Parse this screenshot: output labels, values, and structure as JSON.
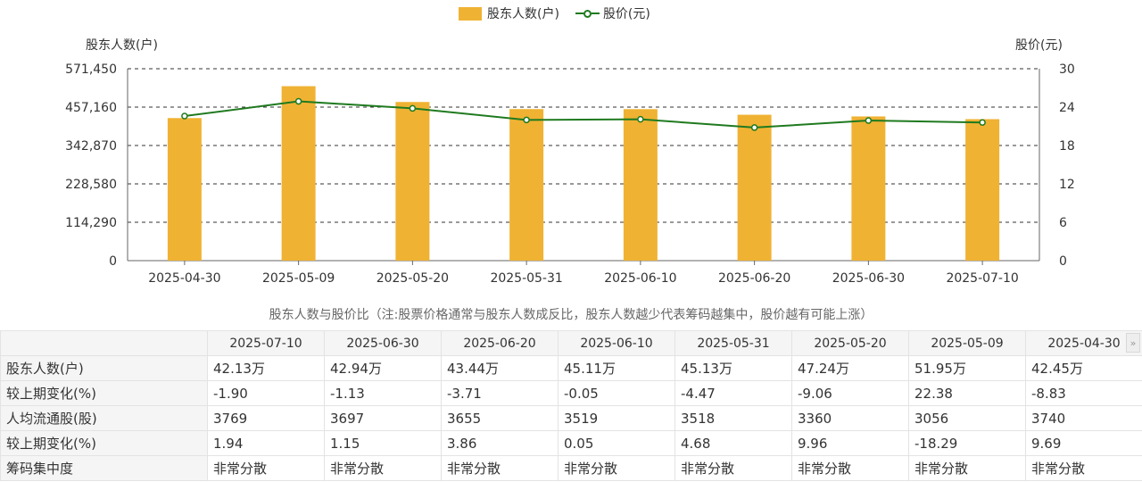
{
  "legend": {
    "bar_label": "股东人数(户)",
    "line_label": "股价(元)"
  },
  "colors": {
    "bar": "#f0b233",
    "line": "#1f7a1f",
    "negative": "#1a9a1a",
    "positive": "#e0312b"
  },
  "chart_data": {
    "type": "bar",
    "categories": [
      "2025-04-30",
      "2025-05-09",
      "2025-05-20",
      "2025-05-31",
      "2025-06-10",
      "2025-06-20",
      "2025-06-30",
      "2025-07-10"
    ],
    "series": [
      {
        "name": "股东人数(户)",
        "type": "bar",
        "axis": "left",
        "values": [
          424500,
          519500,
          472400,
          451300,
          451100,
          434400,
          429400,
          421300
        ]
      },
      {
        "name": "股价(元)",
        "type": "line",
        "axis": "right",
        "values": [
          22.6,
          24.9,
          23.8,
          22.0,
          22.1,
          20.8,
          21.9,
          21.6
        ]
      }
    ],
    "ylabel_left": "股东人数(户)",
    "ylabel_right": "股价(元)",
    "ylim_left": [
      0,
      571450
    ],
    "ylim_right": [
      0,
      30
    ],
    "left_ticks": [
      "0",
      "114,290",
      "228,580",
      "342,870",
      "457,160",
      "571,450"
    ],
    "right_ticks": [
      "0",
      "6",
      "12",
      "18",
      "24",
      "30"
    ],
    "grid": true,
    "legend_position": "top-center"
  },
  "note": "股东人数与股价比（注:股票价格通常与股东人数成反比，股东人数越少代表筹码越集中，股价越有可能上涨）",
  "table": {
    "dates": [
      "2025-07-10",
      "2025-06-30",
      "2025-06-20",
      "2025-06-10",
      "2025-05-31",
      "2025-05-20",
      "2025-05-09",
      "2025-04-30"
    ],
    "rows": [
      {
        "label": "股东人数(户)",
        "values": [
          "42.13万",
          "42.94万",
          "43.44万",
          "45.11万",
          "45.13万",
          "47.24万",
          "51.95万",
          "42.45万"
        ],
        "signs": [
          "",
          "",
          "",
          "",
          "",
          "",
          "",
          ""
        ]
      },
      {
        "label": "较上期变化(%)",
        "values": [
          "-1.90",
          "-1.13",
          "-3.71",
          "-0.05",
          "-4.47",
          "-9.06",
          "22.38",
          "-8.83"
        ],
        "signs": [
          "neg",
          "neg",
          "neg",
          "neg",
          "neg",
          "neg",
          "pos",
          "neg"
        ]
      },
      {
        "label": "人均流通股(股)",
        "values": [
          "3769",
          "3697",
          "3655",
          "3519",
          "3518",
          "3360",
          "3056",
          "3740"
        ],
        "signs": [
          "",
          "",
          "",
          "",
          "",
          "",
          "",
          ""
        ]
      },
      {
        "label": "较上期变化(%)",
        "values": [
          "1.94",
          "1.15",
          "3.86",
          "0.05",
          "4.68",
          "9.96",
          "-18.29",
          "9.69"
        ],
        "signs": [
          "pos",
          "pos",
          "pos",
          "pos",
          "pos",
          "pos",
          "neg",
          "pos"
        ]
      },
      {
        "label": "筹码集中度",
        "values": [
          "非常分散",
          "非常分散",
          "非常分散",
          "非常分散",
          "非常分散",
          "非常分散",
          "非常分散",
          "非常分散"
        ],
        "signs": [
          "",
          "",
          "",
          "",
          "",
          "",
          "",
          ""
        ]
      }
    ],
    "scroll_icon": "double-chevron-right-icon",
    "scroll_glyph": "»"
  }
}
